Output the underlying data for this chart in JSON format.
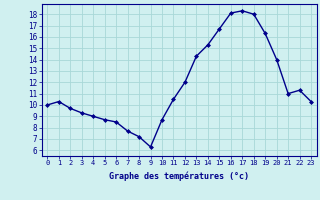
{
  "hours": [
    0,
    1,
    2,
    3,
    4,
    5,
    6,
    7,
    8,
    9,
    10,
    11,
    12,
    13,
    14,
    15,
    16,
    17,
    18,
    19,
    20,
    21,
    22,
    23
  ],
  "temps": [
    10.0,
    10.3,
    9.7,
    9.3,
    9.0,
    8.7,
    8.5,
    7.7,
    7.2,
    6.3,
    8.7,
    10.5,
    12.0,
    14.3,
    15.3,
    16.7,
    18.1,
    18.3,
    18.0,
    16.3,
    14.0,
    11.0,
    11.3,
    10.3
  ],
  "line_color": "#00008B",
  "marker": "D",
  "marker_size": 2.0,
  "bg_color": "#d0f0f0",
  "grid_color": "#a8d8d8",
  "xlabel": "Graphe des températures (°c)",
  "ylabel_ticks": [
    6,
    7,
    8,
    9,
    10,
    11,
    12,
    13,
    14,
    15,
    16,
    17,
    18
  ],
  "ylim": [
    5.5,
    18.9
  ],
  "xlim": [
    -0.5,
    23.5
  ],
  "xtick_labels": [
    "0",
    "1",
    "2",
    "3",
    "4",
    "5",
    "6",
    "7",
    "8",
    "9",
    "10",
    "11",
    "12",
    "13",
    "14",
    "15",
    "16",
    "17",
    "18",
    "19",
    "20",
    "21",
    "22",
    "23"
  ],
  "axis_color": "#00008B",
  "label_color": "#00008B",
  "tick_color": "#00008B",
  "linewidth": 1.0,
  "xlabel_fontsize": 6.0,
  "ytick_fontsize": 5.5,
  "xtick_fontsize": 5.0
}
